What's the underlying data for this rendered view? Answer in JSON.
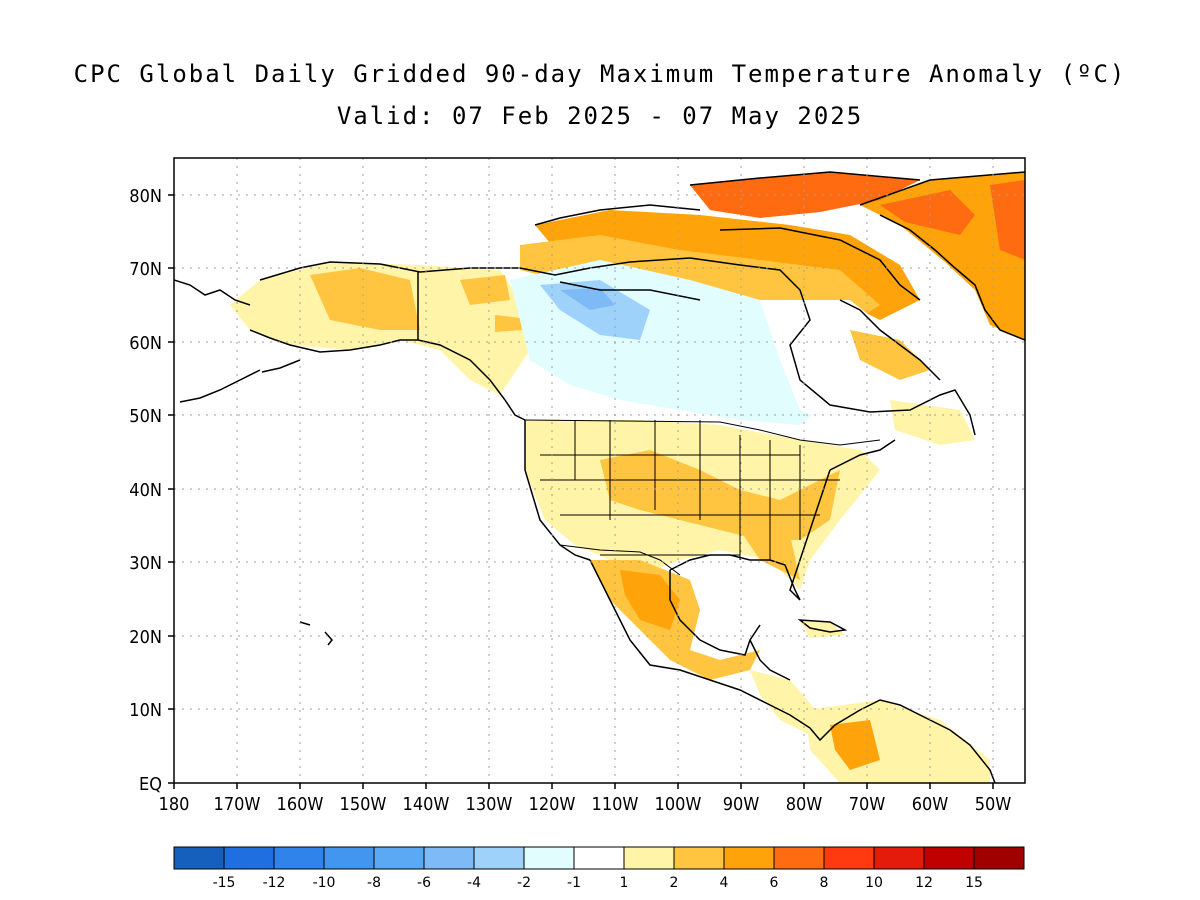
{
  "title": {
    "line1": "CPC Global Daily Gridded 90-day Maximum Temperature Anomaly (ºC)",
    "line2": "Valid: 07 Feb 2025 - 07 May 2025"
  },
  "map": {
    "lat_ticks": [
      "EQ",
      "10N",
      "20N",
      "30N",
      "40N",
      "50N",
      "60N",
      "70N",
      "80N"
    ],
    "lon_ticks": [
      "180",
      "170W",
      "160W",
      "150W",
      "140W",
      "130W",
      "120W",
      "110W",
      "100W",
      "90W",
      "80W",
      "70W",
      "60W",
      "50W"
    ],
    "grid": true
  },
  "colorbar": {
    "colors": [
      "#1560bd",
      "#1f6fe0",
      "#2f83ea",
      "#4396f0",
      "#5ba8f4",
      "#7dbaf6",
      "#9fd2fa",
      "#e1fdfe",
      "#ffffff",
      "#fff4a8",
      "#ffc540",
      "#ffa30a",
      "#ff6b10",
      "#ff3a10",
      "#e41a0a",
      "#c00000",
      "#a00000"
    ],
    "labels": [
      "-15",
      "-12",
      "-10",
      "-8",
      "-6",
      "-4",
      "-2",
      "-1",
      "1",
      "2",
      "4",
      "6",
      "8",
      "10",
      "12",
      "15"
    ]
  }
}
